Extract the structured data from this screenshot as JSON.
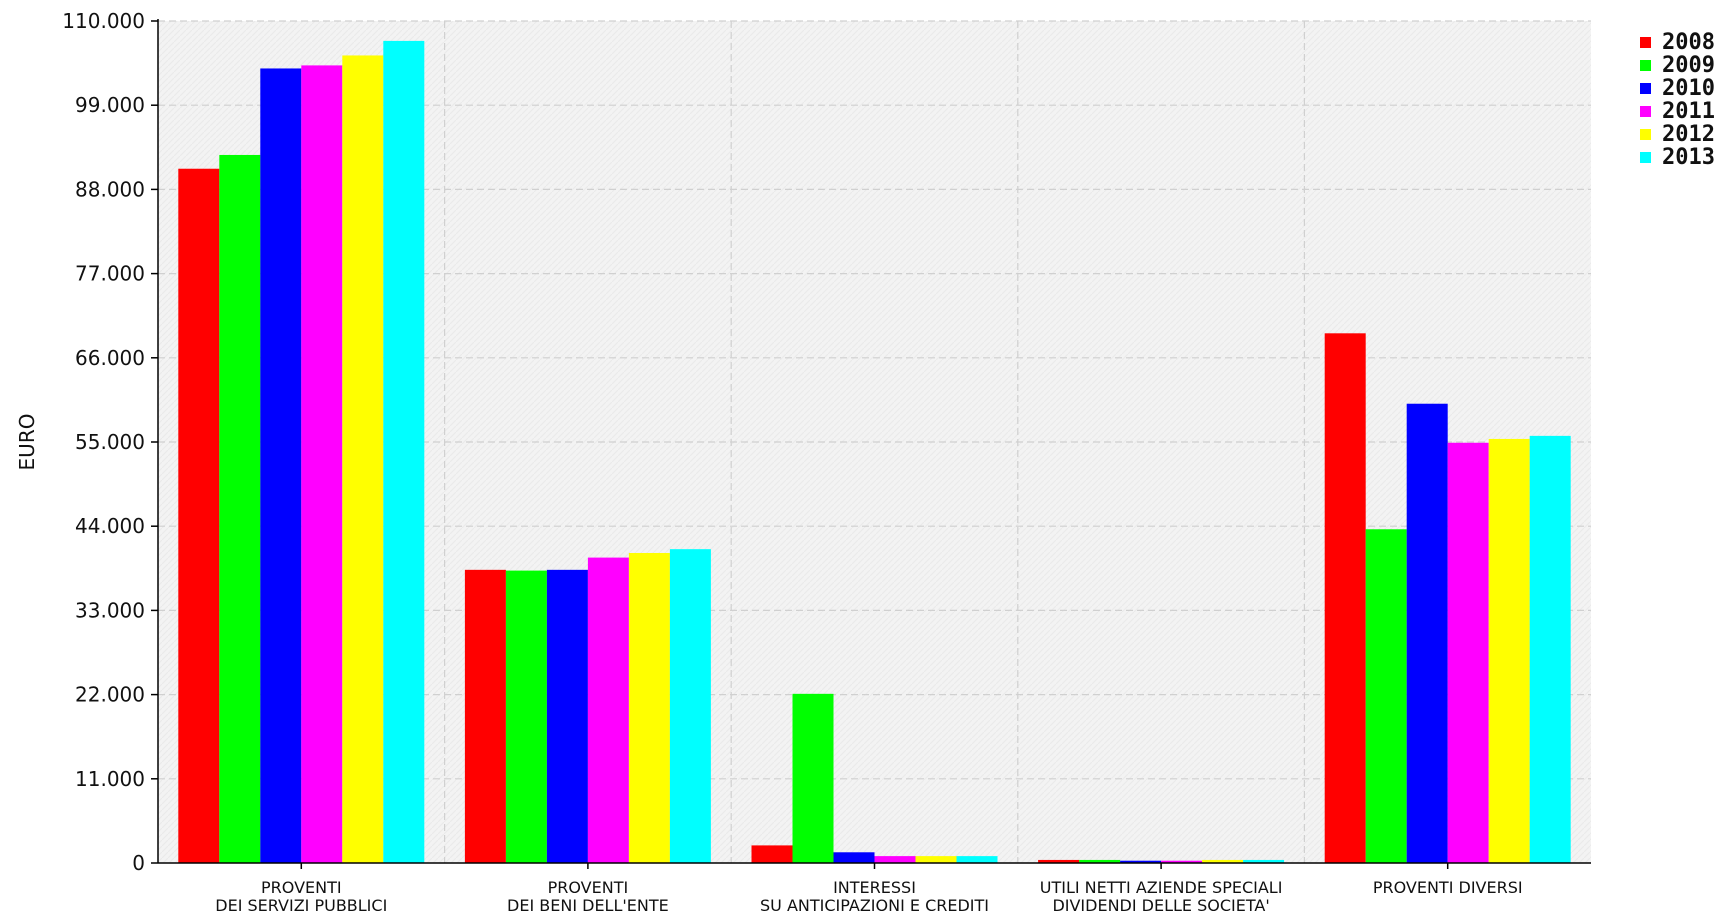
{
  "chart_data": {
    "type": "bar",
    "title": "",
    "xlabel": "",
    "ylabel": "EURO",
    "ylim": [
      0,
      110000
    ],
    "y_ticks": [
      0,
      11000,
      22000,
      33000,
      44000,
      55000,
      66000,
      77000,
      88000,
      99000,
      110000
    ],
    "y_tick_labels": [
      "0",
      "11.000",
      "22.000",
      "33.000",
      "44.000",
      "55.000",
      "66.000",
      "77.000",
      "88.000",
      "99.000",
      "110.000"
    ],
    "grid": true,
    "legend_position": "top-right",
    "categories": [
      [
        "PROVENTI",
        "DEI SERVIZI PUBBLICI"
      ],
      [
        "PROVENTI",
        "DEI BENI DELL'ENTE"
      ],
      [
        "INTERESSI",
        "SU ANTICIPAZIONI E CREDITI"
      ],
      [
        "UTILI NETTI AZIENDE SPECIALI",
        "DIVIDENDI DELLE SOCIETA'"
      ],
      [
        "PROVENTI DIVERSI"
      ]
    ],
    "series": [
      {
        "name": "2008",
        "color": "#ff0000",
        "values": [
          90700,
          38300,
          2300,
          400,
          69200
        ]
      },
      {
        "name": "2009",
        "color": "#00ff00",
        "values": [
          92500,
          38200,
          22100,
          400,
          43600
        ]
      },
      {
        "name": "2010",
        "color": "#0000ff",
        "values": [
          103800,
          38300,
          1400,
          300,
          60000
        ]
      },
      {
        "name": "2011",
        "color": "#ff00ff",
        "values": [
          104200,
          39900,
          900,
          300,
          54900
        ]
      },
      {
        "name": "2012",
        "color": "#ffff00",
        "values": [
          105500,
          40500,
          900,
          400,
          55400
        ]
      },
      {
        "name": "2013",
        "color": "#00ffff",
        "values": [
          107400,
          41000,
          900,
          400,
          55800
        ]
      }
    ]
  }
}
